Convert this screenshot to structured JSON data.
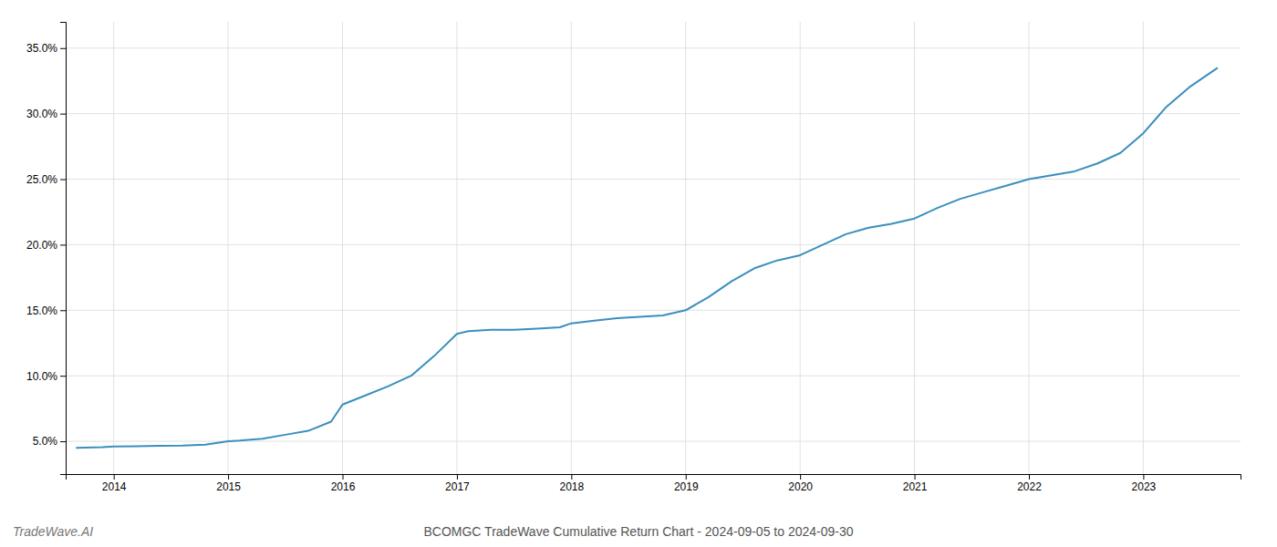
{
  "chart_data": {
    "type": "line",
    "title": "BCOMGC TradeWave Cumulative Return Chart - 2024-09-05 to 2024-09-30",
    "annotations": [
      "TradeWave.AI"
    ],
    "x": [
      2013.67,
      2013.75,
      2013.9,
      2014.0,
      2014.2,
      2014.4,
      2014.6,
      2014.8,
      2015.0,
      2015.1,
      2015.3,
      2015.5,
      2015.7,
      2015.9,
      2016.0,
      2016.2,
      2016.4,
      2016.6,
      2016.8,
      2017.0,
      2017.1,
      2017.3,
      2017.5,
      2017.7,
      2017.9,
      2018.0,
      2018.2,
      2018.4,
      2018.6,
      2018.8,
      2019.0,
      2019.2,
      2019.4,
      2019.6,
      2019.8,
      2020.0,
      2020.2,
      2020.4,
      2020.6,
      2020.8,
      2021.0,
      2021.2,
      2021.4,
      2021.6,
      2021.8,
      2022.0,
      2022.2,
      2022.4,
      2022.6,
      2022.8,
      2023.0,
      2023.2,
      2023.4,
      2023.65
    ],
    "values": [
      4.5,
      4.52,
      4.55,
      4.6,
      4.62,
      4.65,
      4.68,
      4.75,
      5.0,
      5.05,
      5.2,
      5.5,
      5.8,
      6.5,
      7.8,
      8.5,
      9.2,
      10.0,
      11.5,
      13.2,
      13.4,
      13.5,
      13.5,
      13.6,
      13.7,
      14.0,
      14.2,
      14.4,
      14.5,
      14.6,
      15.0,
      16.0,
      17.2,
      18.2,
      18.8,
      19.2,
      20.0,
      20.8,
      21.3,
      21.6,
      22.0,
      22.8,
      23.5,
      24.0,
      24.5,
      25.0,
      25.3,
      25.6,
      26.2,
      27.0,
      28.5,
      30.5,
      32.0,
      33.5
    ],
    "color": "#3a8fbd",
    "xlim": [
      2013.58,
      2023.85
    ],
    "ylim": [
      2.5,
      37.0
    ],
    "xticks": [
      2014,
      2015,
      2016,
      2017,
      2018,
      2019,
      2020,
      2021,
      2022,
      2023
    ],
    "yticks": [
      {
        "value": 5.0,
        "label": "5.0%"
      },
      {
        "value": 10.0,
        "label": "10.0%"
      },
      {
        "value": 15.0,
        "label": "15.0%"
      },
      {
        "value": 20.0,
        "label": "20.0%"
      },
      {
        "value": 25.0,
        "label": "25.0%"
      },
      {
        "value": 30.0,
        "label": "30.0%"
      },
      {
        "value": 35.0,
        "label": "35.0%"
      }
    ],
    "grid": true
  }
}
